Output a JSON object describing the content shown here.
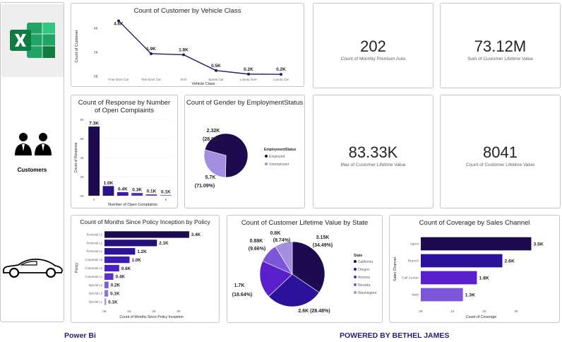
{
  "sidebar": {
    "customers_label": "Customers"
  },
  "footer": {
    "left": "Power Bi",
    "right": "POWERED BY BETHEL JAMES"
  },
  "kpis": [
    {
      "value": "202",
      "label": "Count of Monthly Premium Auto"
    },
    {
      "value": "73.12M",
      "label": "Sum of Customer Lifetime Value"
    },
    {
      "value": "83.33K",
      "label": "Max of Customer Lifetime Value"
    },
    {
      "value": "8041",
      "label": "Count of Customer Lifetime Value"
    }
  ],
  "colors": {
    "dark": "#1e0a4e",
    "mid": "#3d1a9e",
    "purple": "#5b2bd6",
    "violet": "#7b56d9",
    "light": "#a38fe0",
    "lighter": "#c0b2ec"
  },
  "chart_data": [
    {
      "type": "line",
      "title": "Count of Customer by Vehicle Class",
      "xlabel": "Vehicle Class",
      "ylabel": "Count of Customer",
      "categories": [
        "Four-Door Car",
        "Two-Door Car",
        "SUV",
        "Sports Car",
        "Luxury SUV",
        "Luxury Car"
      ],
      "values": [
        4621,
        1886,
        1796,
        484,
        184,
        163
      ],
      "data_labels": [
        "4.6K",
        "1.9K",
        "1.8K",
        "0.5K",
        "0.2K",
        "0.2K"
      ],
      "y_ticks": [
        "4K",
        "2K",
        "0K"
      ],
      "ylim": [
        0,
        5000
      ]
    },
    {
      "type": "bar",
      "title": "Count of Response by Number of Open Complaints",
      "xlabel": "Number of Open Complaints",
      "ylabel": "Count of Response",
      "categories": [
        "0",
        "1",
        "2",
        "3",
        "4",
        "5"
      ],
      "x_ticks": [
        "0",
        "5"
      ],
      "values": [
        7252,
        1011,
        374,
        292,
        149,
        83
      ],
      "data_labels": [
        "7.3K",
        "1.0K",
        "0.4K",
        "0.3K",
        "0.1K",
        "0.1K"
      ],
      "y_ticks": [
        "8K",
        "6K",
        "4K",
        "2K",
        "0K"
      ],
      "ylim": [
        0,
        8000
      ]
    },
    {
      "type": "pie",
      "title": "Count of Gender by EmploymentStatus",
      "legend_title": "EmploymentStatus",
      "legend_position": "right",
      "slices": [
        {
          "name": "Employed",
          "value": 5700,
          "label": "5.7K",
          "pct": "(71.09%)"
        },
        {
          "name": "Unemployed",
          "value": 2320,
          "label": "2.32K",
          "pct": "(28.91...)"
        }
      ]
    },
    {
      "type": "bar",
      "orientation": "horizontal",
      "title": "Count of Months Since Policy Inception by Policy",
      "xlabel": "Count of Months Since Policy Inception",
      "ylabel": "Policy",
      "categories": [
        "Personal L3",
        "Personal L2",
        "Personal L1",
        "Corporate L3",
        "Corporate L2",
        "Corporate L1",
        "Special L2",
        "Special L3",
        "Special L1"
      ],
      "values": [
        3426,
        2122,
        1240,
        1014,
        595,
        359,
        164,
        148,
        66
      ],
      "data_labels": [
        "3.4K",
        "2.1K",
        "1.2K",
        "1.0K",
        "0.6K",
        "0.4K",
        "0.2K",
        "0.1K",
        "0.1K"
      ],
      "x_ticks": [
        "0K",
        "1K",
        "2K",
        "3K"
      ],
      "xlim": [
        0,
        3800
      ]
    },
    {
      "type": "pie",
      "title": "Count of Customer Lifetime Value by State",
      "legend_title": "State",
      "legend_position": "right",
      "slices": [
        {
          "name": "California",
          "value": 3150,
          "label": "3.15K",
          "pct": "(34.49%)"
        },
        {
          "name": "Oregon",
          "value": 2600,
          "label": "2.6K",
          "pct": "(28.48%)"
        },
        {
          "name": "Arizona",
          "value": 1700,
          "label": "1.7K",
          "pct": "(18.64%)"
        },
        {
          "name": "Nevada",
          "value": 880,
          "label": "0.88K",
          "pct": "(9.66%)"
        },
        {
          "name": "Washington",
          "value": 800,
          "label": "0.8K",
          "pct": "(8.74%)"
        }
      ]
    },
    {
      "type": "bar",
      "orientation": "horizontal",
      "title": "Count of Coverage by Sales Channel",
      "xlabel": "Count of Coverage",
      "ylabel": "Sales Channel",
      "categories": [
        "Agent",
        "Branch",
        "Call Center",
        "Web"
      ],
      "values": [
        3477,
        2567,
        1765,
        1325
      ],
      "data_labels": [
        "3.5K",
        "2.6K",
        "1.8K",
        "1.3K"
      ],
      "x_ticks": [
        "0K",
        "1K",
        "2K",
        "3K"
      ],
      "xlim": [
        0,
        3800
      ]
    }
  ]
}
